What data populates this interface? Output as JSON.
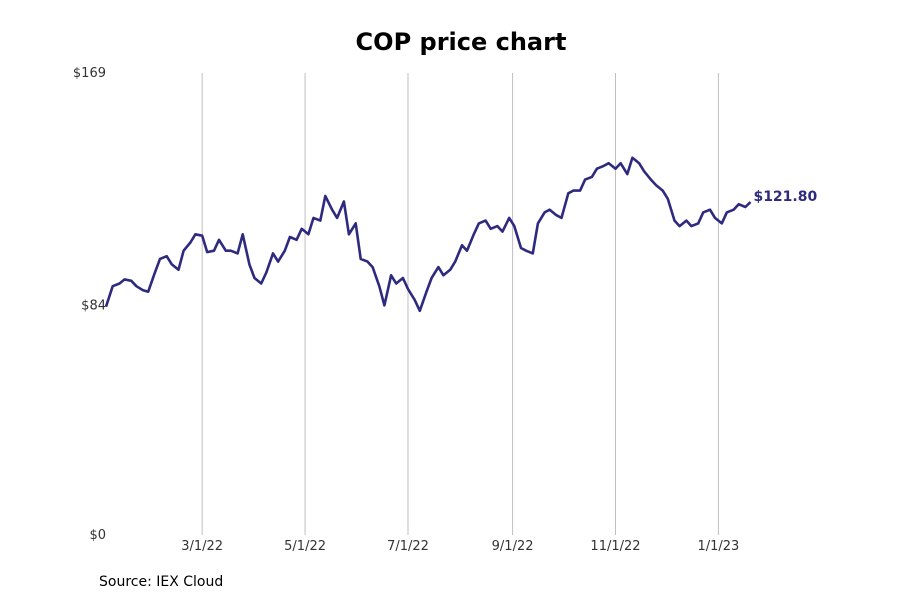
{
  "chart_data": {
    "type": "line",
    "title": "COP price chart",
    "source": "Source: IEX Cloud",
    "ylim": [
      0,
      169
    ],
    "xlim": [
      "2022-01-03",
      "2023-03-20"
    ],
    "grid": "vertical",
    "y_ticks": [
      {
        "value": 169,
        "label": "$169"
      },
      {
        "value": 84,
        "label": "$84"
      },
      {
        "value": 0,
        "label": "$0"
      }
    ],
    "x_ticks": [
      {
        "value": "2022-03-01",
        "label": "3/1/22"
      },
      {
        "value": "2022-05-01",
        "label": "5/1/22"
      },
      {
        "value": "2022-07-01",
        "label": "7/1/22"
      },
      {
        "value": "2022-09-01",
        "label": "9/1/22"
      },
      {
        "value": "2022-11-01",
        "label": "11/1/22"
      },
      {
        "value": "2023-01-01",
        "label": "1/1/23"
      }
    ],
    "end_label": "$121.80",
    "line_color": "#2e2a7f",
    "series": [
      {
        "x": [
          "2022-01-03",
          "2022-01-07",
          "2022-01-11",
          "2022-01-14",
          "2022-01-18",
          "2022-01-21",
          "2022-01-25",
          "2022-01-28",
          "2022-02-01",
          "2022-02-04",
          "2022-02-08",
          "2022-02-11",
          "2022-02-15",
          "2022-02-18",
          "2022-02-22",
          "2022-02-25",
          "2022-03-01",
          "2022-03-04",
          "2022-03-08",
          "2022-03-11",
          "2022-03-15",
          "2022-03-18",
          "2022-03-22",
          "2022-03-25",
          "2022-03-29",
          "2022-04-01",
          "2022-04-05",
          "2022-04-08",
          "2022-04-12",
          "2022-04-15",
          "2022-04-19",
          "2022-04-22",
          "2022-04-26",
          "2022-04-29",
          "2022-05-03",
          "2022-05-06",
          "2022-05-10",
          "2022-05-13",
          "2022-05-17",
          "2022-05-20",
          "2022-05-24",
          "2022-05-27",
          "2022-05-31",
          "2022-06-03",
          "2022-06-07",
          "2022-06-10",
          "2022-06-14",
          "2022-06-17",
          "2022-06-21",
          "2022-06-24",
          "2022-06-28",
          "2022-07-01",
          "2022-07-05",
          "2022-07-08",
          "2022-07-12",
          "2022-07-15",
          "2022-07-19",
          "2022-07-22",
          "2022-07-26",
          "2022-07-29",
          "2022-08-02",
          "2022-08-05",
          "2022-08-09",
          "2022-08-12",
          "2022-08-16",
          "2022-08-19",
          "2022-08-23",
          "2022-08-26",
          "2022-08-30",
          "2022-09-02",
          "2022-09-06",
          "2022-09-09",
          "2022-09-13",
          "2022-09-16",
          "2022-09-20",
          "2022-09-23",
          "2022-09-27",
          "2022-09-30",
          "2022-10-04",
          "2022-10-07",
          "2022-10-11",
          "2022-10-14",
          "2022-10-18",
          "2022-10-21",
          "2022-10-25",
          "2022-10-28",
          "2022-11-01",
          "2022-11-04",
          "2022-11-08",
          "2022-11-11",
          "2022-11-15",
          "2022-11-18",
          "2022-11-22",
          "2022-11-25",
          "2022-11-29",
          "2022-12-02",
          "2022-12-06",
          "2022-12-09",
          "2022-12-13",
          "2022-12-16",
          "2022-12-20",
          "2022-12-23",
          "2022-12-27",
          "2022-12-30",
          "2023-01-03",
          "2023-01-06",
          "2023-01-10",
          "2023-01-13",
          "2023-01-17",
          "2023-01-20"
        ],
        "values": [
          83.5,
          91,
          92,
          93.5,
          93,
          91,
          89.5,
          89,
          96,
          101,
          102,
          99,
          97,
          104,
          107,
          110,
          109.5,
          103.5,
          104,
          108,
          104,
          104,
          103,
          110,
          99,
          94,
          92,
          96,
          103,
          100,
          104,
          109,
          108,
          112,
          110,
          116,
          115,
          124,
          119,
          116,
          122,
          110,
          114,
          101,
          100,
          98,
          91,
          84,
          95,
          92,
          94,
          90,
          86,
          82,
          89,
          94,
          98,
          95,
          97,
          100,
          106,
          104,
          110,
          114,
          115,
          112,
          113,
          111,
          116,
          113,
          105,
          104,
          103,
          114,
          118,
          119,
          117,
          116,
          125,
          126,
          126,
          130,
          131,
          134,
          135,
          136,
          134,
          136,
          132,
          138,
          136,
          133,
          130,
          128,
          126,
          123,
          115,
          113,
          115,
          113,
          114,
          118,
          119,
          116,
          114,
          118,
          119,
          121,
          120,
          121.8
        ]
      }
    ]
  }
}
